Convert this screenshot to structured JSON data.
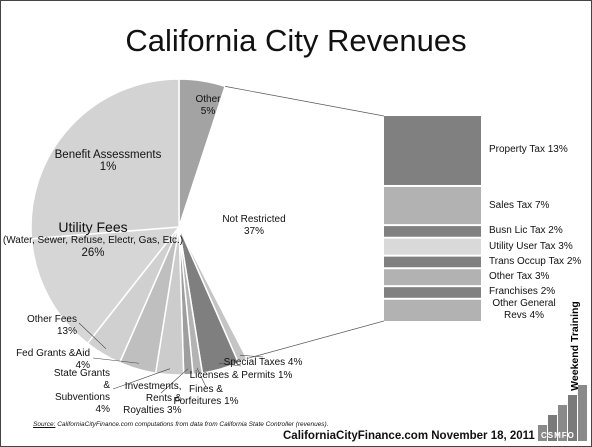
{
  "chart_data": {
    "type": "pie",
    "title": "California City Revenues",
    "categories": [
      "Other",
      "Not Restricted",
      "Benefit Assessments",
      "Special Taxes",
      "Licenses & Permits",
      "Fines & Forfeitures",
      "Investments, Rents & Royalties",
      "State Grants & Subventions",
      "Fed Grants &Aid",
      "Other Fees",
      "Utility Fees"
    ],
    "values": [
      5,
      37,
      1,
      4,
      1,
      1,
      3,
      4,
      4,
      13,
      26
    ],
    "value_labels": [
      "5%",
      "37%",
      "1%",
      "4%",
      "1%",
      "1%",
      "3%",
      "4%",
      "4%",
      "13%",
      "26%"
    ],
    "colors": [
      "#a3a3a3",
      "#ffffff",
      "#c4c4c4",
      "#7f7f7f",
      "#b3b3b3",
      "#9e9e9e",
      "#cccccc",
      "#bfbfbf",
      "#d0d0d0",
      "#d6d6d6",
      "#d3d3d3"
    ],
    "utility_note": "(Water, Sewer, Refuse, Electr, Gas, Etc.)",
    "breakdown": {
      "categories": [
        "Property Tax",
        "Sales Tax",
        "Busn Lic Tax",
        "Utility User Tax",
        "Trans Occup Tax",
        "Other Tax",
        "Franchises",
        "Other General Revs"
      ],
      "values": [
        13,
        7,
        2,
        3,
        2,
        3,
        2,
        4
      ],
      "value_labels": [
        "13%",
        "7%",
        "2%",
        "3%",
        "2%",
        "3%",
        "2%",
        "4%"
      ],
      "colors": [
        "#808080",
        "#b2b2b2",
        "#808080",
        "#d9d9d9",
        "#808080",
        "#b2b2b2",
        "#808080",
        "#b2b2b2"
      ]
    },
    "source_label": "Source:",
    "source_text": "CaliforniaCityFinance.com computations from data from California State Controller (revenues).",
    "footer": "CaliforniaCityFinance.com  November 18, 2011",
    "side_text": "Weekend Training",
    "logo": "CSMFO"
  }
}
